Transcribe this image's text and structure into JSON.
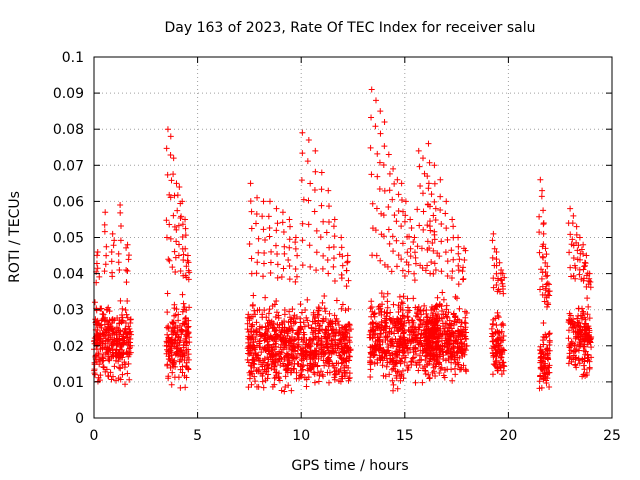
{
  "chart_data": {
    "type": "scatter",
    "title": "Day 163 of 2023, Rate Of TEC Index for receiver salu",
    "xlabel": "GPS time / hours",
    "ylabel": "ROTI / TECUs",
    "xlim": [
      0,
      25
    ],
    "ylim": [
      0,
      0.1
    ],
    "xticks": [
      "0",
      "5",
      "10",
      "15",
      "20",
      "25"
    ],
    "yticks": [
      "0",
      "0.01",
      "0.02",
      "0.03",
      "0.04",
      "0.05",
      "0.06",
      "0.07",
      "0.08",
      "0.09",
      "0.1"
    ],
    "grid": true,
    "marker": "+",
    "color": "#ff0000",
    "clusters": [
      {
        "x": [
          0.0,
          1.8
        ],
        "ylo": 0.007,
        "yhi": 0.037,
        "ymid": 0.021,
        "peaks": [
          0.046,
          0.057,
          0.051,
          0.059,
          0.048
        ]
      },
      {
        "x": [
          3.5,
          4.6
        ],
        "ylo": 0.007,
        "yhi": 0.037,
        "ymid": 0.021,
        "peaks": [
          0.08,
          0.078,
          0.072,
          0.065,
          0.064,
          0.06,
          0.055,
          0.045
        ]
      },
      {
        "x": [
          7.4,
          12.4
        ],
        "ylo": 0.005,
        "yhi": 0.036,
        "ymid": 0.02,
        "peaks": [
          0.065,
          0.061,
          0.06,
          0.06,
          0.058,
          0.057,
          0.055,
          0.05,
          0.079,
          0.077,
          0.074,
          0.068,
          0.063,
          0.055,
          0.05,
          0.045
        ]
      },
      {
        "x": [
          13.3,
          16.6
        ],
        "ylo": 0.006,
        "yhi": 0.037,
        "ymid": 0.022,
        "peaks": [
          0.091,
          0.088,
          0.085,
          0.082,
          0.073,
          0.069,
          0.066,
          0.065,
          0.06,
          0.055,
          0.05,
          0.074,
          0.072,
          0.067,
          0.062,
          0.058
        ]
      },
      {
        "x": [
          16.0,
          18.0
        ],
        "ylo": 0.007,
        "yhi": 0.036,
        "ymid": 0.022,
        "peaks": [
          0.076,
          0.07,
          0.066,
          0.06,
          0.055,
          0.05,
          0.047
        ]
      },
      {
        "x": [
          19.2,
          19.8
        ],
        "ylo": 0.009,
        "yhi": 0.034,
        "ymid": 0.02,
        "peaks": [
          0.051,
          0.046,
          0.043,
          0.04
        ]
      },
      {
        "x": [
          21.5,
          22.0
        ],
        "ylo": 0.007,
        "yhi": 0.03,
        "ymid": 0.016,
        "peaks": [
          0.066,
          0.063,
          0.054,
          0.047,
          0.042,
          0.037
        ]
      },
      {
        "x": [
          22.9,
          24.0
        ],
        "ylo": 0.009,
        "yhi": 0.036,
        "ymid": 0.022,
        "peaks": [
          0.058,
          0.056,
          0.053,
          0.05,
          0.048,
          0.045,
          0.04
        ]
      }
    ]
  }
}
